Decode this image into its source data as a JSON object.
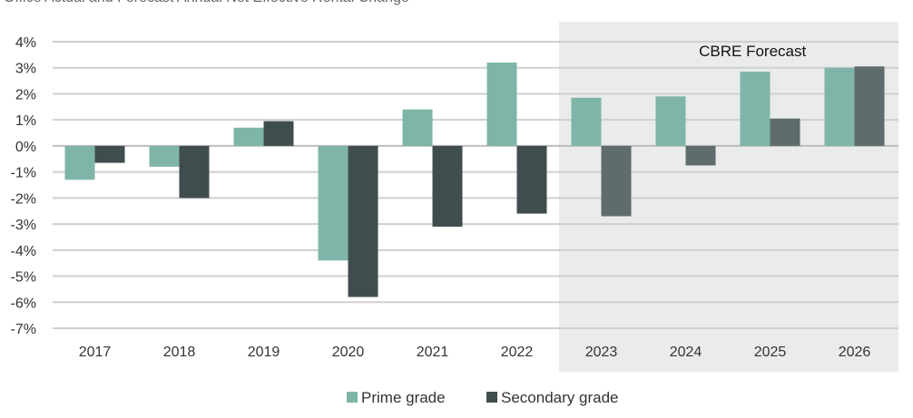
{
  "colors": {
    "prime": "#7fb5a8",
    "secondary_actual": "#404d4f",
    "secondary_forecast": "#5f6b6d",
    "forecast_bg": "#e9ecea",
    "grid": "#cfcfcf",
    "text": "#333333"
  },
  "chart_data": {
    "type": "bar",
    "title": "Office Actual and Forecast Annual Net Effective Rental Change",
    "categories": [
      "2017",
      "2018",
      "2019",
      "2020",
      "2021",
      "2022",
      "2023",
      "2024",
      "2025",
      "2026"
    ],
    "series": [
      {
        "name": "Prime grade",
        "values": [
          -1.3,
          -0.8,
          0.7,
          -4.4,
          1.4,
          3.2,
          1.85,
          1.9,
          2.85,
          3.0
        ]
      },
      {
        "name": "Secondary grade",
        "values": [
          -0.65,
          -2.0,
          0.95,
          -5.8,
          -3.1,
          -2.6,
          -2.7,
          -0.75,
          1.05,
          3.05
        ]
      }
    ],
    "ylim": [
      -7,
      4
    ],
    "yticks": [
      4,
      3,
      2,
      1,
      0,
      -1,
      -2,
      -3,
      -4,
      -5,
      -6,
      -7
    ],
    "ytick_labels": [
      "4%",
      "3%",
      "2%",
      "1%",
      "0%",
      "-1%",
      "-2%",
      "-3%",
      "-4%",
      "-5%",
      "-6%",
      "-7%"
    ],
    "forecast_label": "CBRE Forecast",
    "forecast_start_index": 6,
    "legend": [
      "Prime grade",
      "Secondary grade"
    ],
    "legend_position": "bottom-center",
    "xlabel": "",
    "ylabel": "",
    "grid": true
  }
}
